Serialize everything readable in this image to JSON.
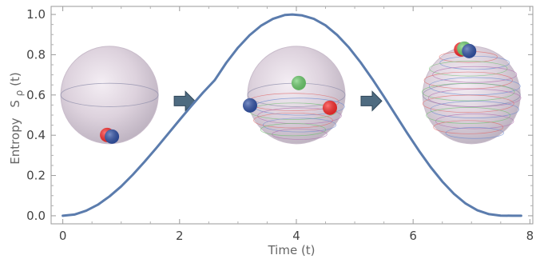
{
  "chart_data": {
    "type": "line",
    "xlabel": "Time (t)",
    "ylabel_prefix": "Entropy",
    "ylabel_symbol": "S",
    "ylabel_sub": "ρ",
    "ylabel_suffix": "(t)",
    "xlim": [
      -0.2,
      8.05
    ],
    "ylim": [
      -0.04,
      1.04
    ],
    "x_ticks": [
      0,
      2,
      4,
      6,
      8
    ],
    "x_tick_labels": [
      "0",
      "2",
      "4",
      "6",
      "8"
    ],
    "y_ticks": [
      0.0,
      0.2,
      0.4,
      0.6,
      0.8,
      1.0
    ],
    "y_tick_labels": [
      "0.0",
      "0.2",
      "0.4",
      "0.6",
      "0.8",
      "1.0"
    ],
    "grid": false,
    "series": [
      {
        "color": "#5b7cad",
        "x": [
          0,
          0.2,
          0.4,
          0.6,
          0.8,
          1.0,
          1.2,
          1.4,
          1.6,
          1.8,
          2.0,
          2.2,
          2.4,
          2.6,
          2.8,
          3.0,
          3.2,
          3.4,
          3.6,
          3.8,
          3.93,
          4.1,
          4.3,
          4.5,
          4.7,
          4.9,
          5.1,
          5.3,
          5.5,
          5.7,
          5.9,
          6.1,
          6.3,
          6.5,
          6.7,
          6.9,
          7.1,
          7.3,
          7.5,
          7.7,
          7.85
        ],
        "y": [
          0.0,
          0.006,
          0.025,
          0.055,
          0.096,
          0.146,
          0.204,
          0.268,
          0.336,
          0.406,
          0.476,
          0.545,
          0.611,
          0.673,
          0.76,
          0.835,
          0.897,
          0.945,
          0.978,
          0.997,
          1.0,
          0.995,
          0.978,
          0.946,
          0.898,
          0.836,
          0.762,
          0.68,
          0.592,
          0.501,
          0.41,
          0.323,
          0.242,
          0.17,
          0.109,
          0.061,
          0.027,
          0.008,
          0.001,
          0.0,
          0.0
        ]
      }
    ],
    "insets": [
      {
        "kind": "bloch-sphere",
        "x": 0.8,
        "y": 0.6,
        "arrow_after": true
      },
      {
        "kind": "bloch-sphere",
        "x": 4.0,
        "y": 0.6,
        "arrow_after": true
      },
      {
        "kind": "bloch-sphere",
        "x": 7.0,
        "y": 0.6,
        "arrow_after": false
      }
    ],
    "colors": {
      "curve": "#5b7cad",
      "frame": "#9a9a9a",
      "arrow": "#4e6b80",
      "sphere": "#d9cfd9",
      "dot_red": "#ff2a2a",
      "dot_green": "#6fcf6f",
      "dot_blue": "#3152a8"
    }
  }
}
